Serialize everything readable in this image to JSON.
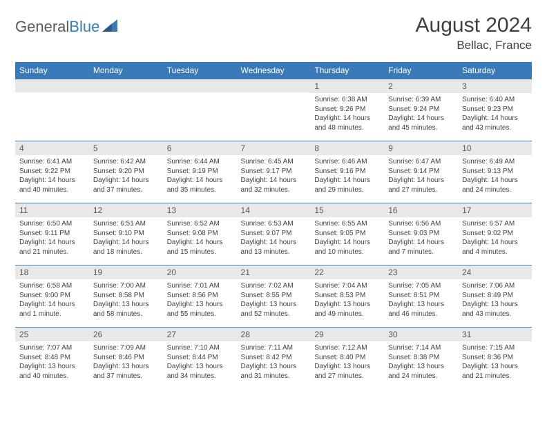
{
  "logo": {
    "text1": "General",
    "text2": "Blue"
  },
  "header": {
    "title": "August 2024",
    "location": "Bellac, France"
  },
  "weekdays": [
    "Sunday",
    "Monday",
    "Tuesday",
    "Wednesday",
    "Thursday",
    "Friday",
    "Saturday"
  ],
  "colors": {
    "header_bg": "#3a7ab8",
    "header_fg": "#ffffff",
    "daynum_bg": "#e8e8e8",
    "border": "#3a7ab8",
    "text": "#404040",
    "logo_gray": "#5a5a5a",
    "logo_blue": "#3a7ab8"
  },
  "weeks": [
    [
      {
        "n": "",
        "sr": "",
        "ss": "",
        "dl": ""
      },
      {
        "n": "",
        "sr": "",
        "ss": "",
        "dl": ""
      },
      {
        "n": "",
        "sr": "",
        "ss": "",
        "dl": ""
      },
      {
        "n": "",
        "sr": "",
        "ss": "",
        "dl": ""
      },
      {
        "n": "1",
        "sr": "Sunrise: 6:38 AM",
        "ss": "Sunset: 9:26 PM",
        "dl": "Daylight: 14 hours and 48 minutes."
      },
      {
        "n": "2",
        "sr": "Sunrise: 6:39 AM",
        "ss": "Sunset: 9:24 PM",
        "dl": "Daylight: 14 hours and 45 minutes."
      },
      {
        "n": "3",
        "sr": "Sunrise: 6:40 AM",
        "ss": "Sunset: 9:23 PM",
        "dl": "Daylight: 14 hours and 43 minutes."
      }
    ],
    [
      {
        "n": "4",
        "sr": "Sunrise: 6:41 AM",
        "ss": "Sunset: 9:22 PM",
        "dl": "Daylight: 14 hours and 40 minutes."
      },
      {
        "n": "5",
        "sr": "Sunrise: 6:42 AM",
        "ss": "Sunset: 9:20 PM",
        "dl": "Daylight: 14 hours and 37 minutes."
      },
      {
        "n": "6",
        "sr": "Sunrise: 6:44 AM",
        "ss": "Sunset: 9:19 PM",
        "dl": "Daylight: 14 hours and 35 minutes."
      },
      {
        "n": "7",
        "sr": "Sunrise: 6:45 AM",
        "ss": "Sunset: 9:17 PM",
        "dl": "Daylight: 14 hours and 32 minutes."
      },
      {
        "n": "8",
        "sr": "Sunrise: 6:46 AM",
        "ss": "Sunset: 9:16 PM",
        "dl": "Daylight: 14 hours and 29 minutes."
      },
      {
        "n": "9",
        "sr": "Sunrise: 6:47 AM",
        "ss": "Sunset: 9:14 PM",
        "dl": "Daylight: 14 hours and 27 minutes."
      },
      {
        "n": "10",
        "sr": "Sunrise: 6:49 AM",
        "ss": "Sunset: 9:13 PM",
        "dl": "Daylight: 14 hours and 24 minutes."
      }
    ],
    [
      {
        "n": "11",
        "sr": "Sunrise: 6:50 AM",
        "ss": "Sunset: 9:11 PM",
        "dl": "Daylight: 14 hours and 21 minutes."
      },
      {
        "n": "12",
        "sr": "Sunrise: 6:51 AM",
        "ss": "Sunset: 9:10 PM",
        "dl": "Daylight: 14 hours and 18 minutes."
      },
      {
        "n": "13",
        "sr": "Sunrise: 6:52 AM",
        "ss": "Sunset: 9:08 PM",
        "dl": "Daylight: 14 hours and 15 minutes."
      },
      {
        "n": "14",
        "sr": "Sunrise: 6:53 AM",
        "ss": "Sunset: 9:07 PM",
        "dl": "Daylight: 14 hours and 13 minutes."
      },
      {
        "n": "15",
        "sr": "Sunrise: 6:55 AM",
        "ss": "Sunset: 9:05 PM",
        "dl": "Daylight: 14 hours and 10 minutes."
      },
      {
        "n": "16",
        "sr": "Sunrise: 6:56 AM",
        "ss": "Sunset: 9:03 PM",
        "dl": "Daylight: 14 hours and 7 minutes."
      },
      {
        "n": "17",
        "sr": "Sunrise: 6:57 AM",
        "ss": "Sunset: 9:02 PM",
        "dl": "Daylight: 14 hours and 4 minutes."
      }
    ],
    [
      {
        "n": "18",
        "sr": "Sunrise: 6:58 AM",
        "ss": "Sunset: 9:00 PM",
        "dl": "Daylight: 14 hours and 1 minute."
      },
      {
        "n": "19",
        "sr": "Sunrise: 7:00 AM",
        "ss": "Sunset: 8:58 PM",
        "dl": "Daylight: 13 hours and 58 minutes."
      },
      {
        "n": "20",
        "sr": "Sunrise: 7:01 AM",
        "ss": "Sunset: 8:56 PM",
        "dl": "Daylight: 13 hours and 55 minutes."
      },
      {
        "n": "21",
        "sr": "Sunrise: 7:02 AM",
        "ss": "Sunset: 8:55 PM",
        "dl": "Daylight: 13 hours and 52 minutes."
      },
      {
        "n": "22",
        "sr": "Sunrise: 7:04 AM",
        "ss": "Sunset: 8:53 PM",
        "dl": "Daylight: 13 hours and 49 minutes."
      },
      {
        "n": "23",
        "sr": "Sunrise: 7:05 AM",
        "ss": "Sunset: 8:51 PM",
        "dl": "Daylight: 13 hours and 46 minutes."
      },
      {
        "n": "24",
        "sr": "Sunrise: 7:06 AM",
        "ss": "Sunset: 8:49 PM",
        "dl": "Daylight: 13 hours and 43 minutes."
      }
    ],
    [
      {
        "n": "25",
        "sr": "Sunrise: 7:07 AM",
        "ss": "Sunset: 8:48 PM",
        "dl": "Daylight: 13 hours and 40 minutes."
      },
      {
        "n": "26",
        "sr": "Sunrise: 7:09 AM",
        "ss": "Sunset: 8:46 PM",
        "dl": "Daylight: 13 hours and 37 minutes."
      },
      {
        "n": "27",
        "sr": "Sunrise: 7:10 AM",
        "ss": "Sunset: 8:44 PM",
        "dl": "Daylight: 13 hours and 34 minutes."
      },
      {
        "n": "28",
        "sr": "Sunrise: 7:11 AM",
        "ss": "Sunset: 8:42 PM",
        "dl": "Daylight: 13 hours and 31 minutes."
      },
      {
        "n": "29",
        "sr": "Sunrise: 7:12 AM",
        "ss": "Sunset: 8:40 PM",
        "dl": "Daylight: 13 hours and 27 minutes."
      },
      {
        "n": "30",
        "sr": "Sunrise: 7:14 AM",
        "ss": "Sunset: 8:38 PM",
        "dl": "Daylight: 13 hours and 24 minutes."
      },
      {
        "n": "31",
        "sr": "Sunrise: 7:15 AM",
        "ss": "Sunset: 8:36 PM",
        "dl": "Daylight: 13 hours and 21 minutes."
      }
    ]
  ]
}
